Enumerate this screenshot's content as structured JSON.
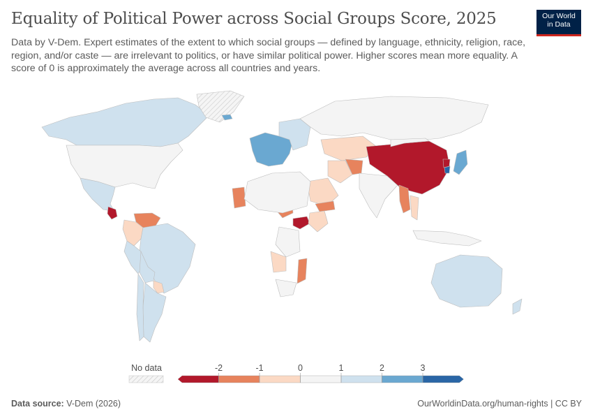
{
  "header": {
    "title": "Equality of Political Power across Social Groups Score, 2025",
    "subtitle": "Data by V-Dem. Expert estimates of the extent to which social groups — defined by language, ethnicity, religion, race, region, and/or caste — are irrelevant to politics, or have similar political power. Higher scores mean more equality. A score of 0 is approximately the average across all countries and years.",
    "logo_line1": "Our World",
    "logo_line2": "in Data"
  },
  "colors": {
    "bin_neg3_neg2": "#b2182b",
    "bin_neg2_neg1": "#e7835d",
    "bin_neg1_0": "#fbd9c4",
    "bin_0_1": "#f4f4f4",
    "bin_1_2": "#cfe1ee",
    "bin_2_3": "#6aa8d1",
    "bin_3_plus": "#2a66a6",
    "no_data": "#eeeeee",
    "border": "#bdbdbd",
    "logo_bg": "#002147",
    "logo_accent": "#ce261e"
  },
  "chart_data": {
    "type": "choropleth",
    "title": "Equality of Political Power across Social Groups Score, 2025",
    "legend": {
      "no_data_label": "No data",
      "ticks": [
        "-2",
        "-1",
        "0",
        "1",
        "2",
        "3"
      ],
      "bins": [
        {
          "from": null,
          "to": -2,
          "color": "#b2182b"
        },
        {
          "from": -2,
          "to": -1,
          "color": "#e7835d"
        },
        {
          "from": -1,
          "to": 0,
          "color": "#fbd9c4"
        },
        {
          "from": 0,
          "to": 1,
          "color": "#f4f4f4"
        },
        {
          "from": 1,
          "to": 2,
          "color": "#cfe1ee"
        },
        {
          "from": 2,
          "to": 3,
          "color": "#6aa8d1"
        },
        {
          "from": 3,
          "to": null,
          "color": "#2a66a6"
        }
      ],
      "placement": "bottom-center"
    },
    "regions": [
      {
        "name": "Canada",
        "bin": "1-2"
      },
      {
        "name": "United States",
        "bin": "0-1"
      },
      {
        "name": "Mexico",
        "bin": "1-2"
      },
      {
        "name": "Nicaragua",
        "bin": "<-2"
      },
      {
        "name": "Venezuela",
        "bin": "-2--1"
      },
      {
        "name": "Colombia",
        "bin": "-1-0"
      },
      {
        "name": "Brazil",
        "bin": "1-2"
      },
      {
        "name": "Peru",
        "bin": "1-2"
      },
      {
        "name": "Bolivia",
        "bin": "1-2"
      },
      {
        "name": "Paraguay",
        "bin": "-1-0"
      },
      {
        "name": "Argentina",
        "bin": "1-2"
      },
      {
        "name": "Chile",
        "bin": "1-2"
      },
      {
        "name": "Greenland",
        "bin": "no-data"
      },
      {
        "name": "Iceland",
        "bin": "2-3"
      },
      {
        "name": "Western Europe",
        "bin": "2-3"
      },
      {
        "name": "Eastern Europe",
        "bin": "1-2"
      },
      {
        "name": "Russia",
        "bin": "0-1"
      },
      {
        "name": "Kazakhstan",
        "bin": "-1-0"
      },
      {
        "name": "Afghanistan",
        "bin": "-2--1"
      },
      {
        "name": "Iran",
        "bin": "-1-0"
      },
      {
        "name": "Saudi Arabia",
        "bin": "-1-0"
      },
      {
        "name": "Yemen",
        "bin": "-2--1"
      },
      {
        "name": "India",
        "bin": "0-1"
      },
      {
        "name": "China",
        "bin": "<-2"
      },
      {
        "name": "Mongolia",
        "bin": "0-1"
      },
      {
        "name": "Myanmar",
        "bin": "-2--1"
      },
      {
        "name": "Thailand",
        "bin": "-1-0"
      },
      {
        "name": "Japan",
        "bin": "2-3"
      },
      {
        "name": "South Korea",
        "bin": "3+"
      },
      {
        "name": "North Korea",
        "bin": "<-2"
      },
      {
        "name": "Indonesia",
        "bin": "0-1"
      },
      {
        "name": "Australia",
        "bin": "1-2"
      },
      {
        "name": "New Zealand",
        "bin": "1-2"
      },
      {
        "name": "Mauritania",
        "bin": "-2--1"
      },
      {
        "name": "Sudan",
        "bin": "-2--1"
      },
      {
        "name": "South Sudan",
        "bin": "<-2"
      },
      {
        "name": "Ethiopia",
        "bin": "-1-0"
      },
      {
        "name": "DR Congo",
        "bin": "0-1"
      },
      {
        "name": "Angola",
        "bin": "-1-0"
      },
      {
        "name": "Mozambique",
        "bin": "-2--1"
      },
      {
        "name": "South Africa",
        "bin": "0-1"
      },
      {
        "name": "North Africa",
        "bin": "0-1"
      }
    ]
  },
  "footer": {
    "source_label": "Data source:",
    "source_value": "V-Dem (2026)",
    "url": "OurWorldinData.org/human-rights | CC BY"
  }
}
